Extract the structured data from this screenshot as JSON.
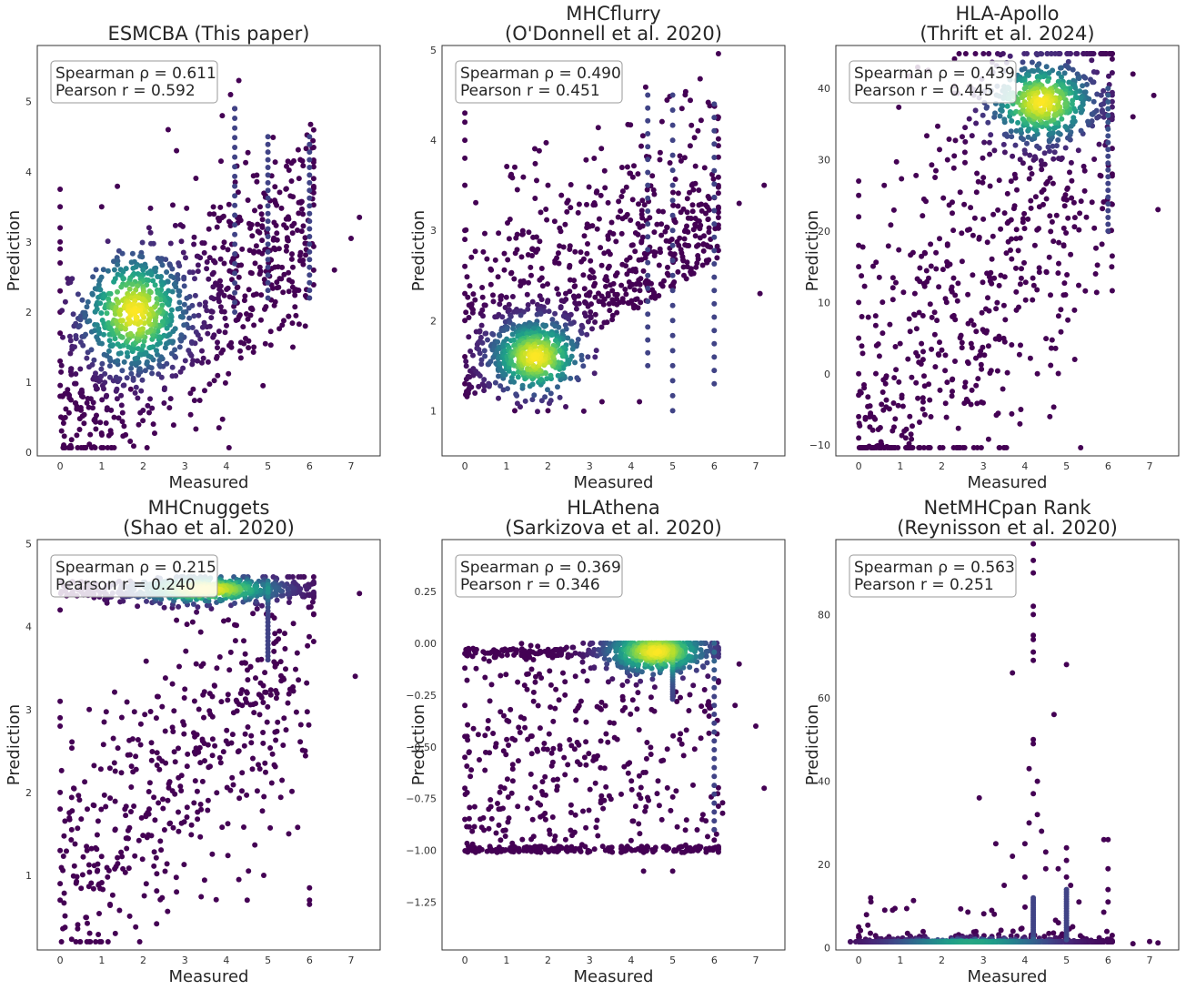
{
  "chart_data": [
    {
      "type": "scatter",
      "title_lines": [
        "ESMCBA (This paper)"
      ],
      "xlabel": "Measured",
      "ylabel": "Prediction",
      "xlim": [
        -0.55,
        7.7
      ],
      "ylim": [
        -0.05,
        5.8
      ],
      "xticks": [
        0,
        1,
        2,
        3,
        4,
        5,
        6,
        7
      ],
      "yticks": [
        0,
        1,
        2,
        3,
        4,
        5
      ],
      "ytick_labels": [
        "0",
        "1",
        "2",
        "3",
        "4",
        "5"
      ],
      "stats": {
        "spearman": "Spearman ρ = 0.611",
        "pearson": "Pearson r = 0.592"
      },
      "legend_position": "top-left",
      "density_peak": [
        1.8,
        2.0
      ],
      "density_spread": [
        0.9,
        0.6
      ],
      "n_points": 1100,
      "points": [
        [
          0,
          0.8
        ],
        [
          0,
          1.3
        ],
        [
          0,
          1.7
        ],
        [
          0,
          2.0
        ],
        [
          0,
          2.3
        ],
        [
          0,
          2.7
        ],
        [
          0,
          2.9
        ],
        [
          0,
          3.0
        ],
        [
          0,
          3.2
        ],
        [
          0,
          3.5
        ],
        [
          0,
          3.75
        ],
        [
          1.3,
          0.5
        ],
        [
          0.5,
          0.6
        ],
        [
          3.2,
          0.9
        ],
        [
          1.7,
          0.9
        ],
        [
          4.3,
          5.3
        ],
        [
          4.1,
          5.1
        ],
        [
          3.9,
          4.8
        ],
        [
          4.2,
          4.9
        ],
        [
          5.6,
          1.5
        ],
        [
          5.9,
          1.8
        ],
        [
          7.2,
          3.35
        ],
        [
          7.0,
          3.05
        ],
        [
          6.6,
          2.6
        ],
        [
          6.1,
          3.7
        ],
        [
          1.0,
          3.5
        ],
        [
          2.6,
          4.6
        ],
        [
          2.8,
          4.3
        ]
      ],
      "vertical_lines": [
        [
          4.2,
          2.0,
          4.9
        ],
        [
          5.0,
          2.2,
          4.5
        ],
        [
          6.0,
          2.2,
          4.5
        ]
      ]
    },
    {
      "type": "scatter",
      "title_lines": [
        "MHCflurry",
        "(O'Donnell et al. 2020)"
      ],
      "xlabel": "Measured",
      "ylabel": "Prediction",
      "xlim": [
        -0.55,
        7.7
      ],
      "ylim": [
        0.5,
        5.05
      ],
      "xticks": [
        0,
        1,
        2,
        3,
        4,
        5,
        6,
        7
      ],
      "yticks": [
        1,
        2,
        3,
        4,
        5
      ],
      "ytick_labels": [
        "1",
        "2",
        "3",
        "4",
        "5"
      ],
      "stats": {
        "spearman": "Spearman ρ = 0.490",
        "pearson": "Pearson r = 0.451"
      },
      "legend_position": "top-left",
      "density_peak": [
        1.7,
        1.6
      ],
      "density_spread": [
        0.8,
        0.3
      ],
      "n_points": 1100,
      "points": [
        [
          0,
          4.3
        ],
        [
          0,
          4.2
        ],
        [
          0,
          4.0
        ],
        [
          0,
          3.8
        ],
        [
          0,
          3.5
        ],
        [
          0,
          3.0
        ],
        [
          0,
          2.9
        ],
        [
          0,
          2.6
        ],
        [
          0,
          2.3
        ],
        [
          0,
          2.0
        ],
        [
          0,
          1.6
        ],
        [
          0,
          1.3
        ],
        [
          1.1,
          3.6
        ],
        [
          1.2,
          3.7
        ],
        [
          2.0,
          3.5
        ],
        [
          7.2,
          3.5
        ],
        [
          6.6,
          3.3
        ],
        [
          7.1,
          2.3
        ],
        [
          4.2,
          1.1
        ],
        [
          3.3,
          1.1
        ],
        [
          2.0,
          1.0
        ],
        [
          1.2,
          1.0
        ]
      ],
      "vertical_lines": [
        [
          5.0,
          1.0,
          4.5
        ],
        [
          6.0,
          1.3,
          4.4
        ],
        [
          4.4,
          1.5,
          4.5
        ]
      ]
    },
    {
      "type": "scatter",
      "title_lines": [
        "HLA-Apollo",
        "(Thrift et al. 2024)"
      ],
      "xlabel": "Measured",
      "ylabel": "Prediction",
      "xlim": [
        -0.55,
        7.7
      ],
      "ylim": [
        -11.5,
        46
      ],
      "xticks": [
        0,
        1,
        2,
        3,
        4,
        5,
        6,
        7
      ],
      "yticks": [
        -10,
        0,
        10,
        20,
        30,
        40
      ],
      "ytick_labels": [
        "−10",
        "0",
        "10",
        "20",
        "30",
        "40"
      ],
      "stats": {
        "spearman": "Spearman ρ = 0.439",
        "pearson": "Pearson r = 0.445"
      },
      "legend_position": "top-left",
      "density_peak": [
        4.4,
        38
      ],
      "density_spread": [
        0.9,
        4
      ],
      "n_points": 1100,
      "points": [
        [
          0,
          27
        ],
        [
          0,
          25
        ],
        [
          0,
          22
        ],
        [
          0,
          18
        ],
        [
          0,
          15
        ],
        [
          0,
          10
        ],
        [
          0,
          5
        ],
        [
          0,
          0
        ],
        [
          0,
          -3
        ],
        [
          0,
          -6
        ],
        [
          0,
          -9
        ],
        [
          6.6,
          42
        ],
        [
          7.1,
          39
        ],
        [
          7.2,
          23
        ],
        [
          6.6,
          36
        ],
        [
          6.1,
          28
        ],
        [
          5.7,
          14
        ],
        [
          4.6,
          -6
        ],
        [
          4.3,
          0
        ],
        [
          3.9,
          -5
        ]
      ],
      "vertical_lines": [
        [
          6.0,
          20,
          40
        ]
      ]
    },
    {
      "type": "scatter",
      "title_lines": [
        "MHCnuggets",
        "(Shao et al. 2020)"
      ],
      "xlabel": "Measured",
      "ylabel": "Prediction",
      "xlim": [
        -0.55,
        7.7
      ],
      "ylim": [
        0.1,
        5.05
      ],
      "xticks": [
        0,
        1,
        2,
        3,
        4,
        5,
        6,
        7
      ],
      "yticks": [
        1,
        2,
        3,
        4,
        5
      ],
      "ytick_labels": [
        "1",
        "2",
        "3",
        "4",
        "5"
      ],
      "stats": {
        "spearman": "Spearman ρ = 0.215",
        "pearson": "Pearson r = 0.240"
      },
      "legend_position": "top-left",
      "density_peak": [
        3.5,
        4.45
      ],
      "density_spread": [
        1.3,
        0.12
      ],
      "n_points": 1100,
      "points": [
        [
          0,
          3.1
        ],
        [
          0,
          2.9
        ],
        [
          0,
          2.8
        ],
        [
          0,
          2.0
        ],
        [
          0,
          1.3
        ],
        [
          0,
          0.7
        ],
        [
          0,
          0.9
        ],
        [
          0,
          1.8
        ],
        [
          0,
          4.2
        ],
        [
          7.1,
          3.4
        ],
        [
          7.2,
          4.4
        ],
        [
          6.0,
          0.7
        ],
        [
          6.0,
          0.65
        ],
        [
          6.0,
          0.85
        ],
        [
          4.5,
          0.7
        ],
        [
          1.2,
          0.65
        ],
        [
          2.8,
          0.8
        ],
        [
          4.3,
          0.95
        ],
        [
          5.5,
          1.5
        ],
        [
          4.9,
          1.0
        ],
        [
          0.7,
          3.0
        ],
        [
          4.5,
          3.2
        ],
        [
          4.6,
          2.6
        ]
      ],
      "vertical_lines": [
        [
          5.0,
          3.6,
          4.55
        ]
      ]
    },
    {
      "type": "scatter",
      "title_lines": [
        "HLAthena",
        "(Sarkizova et al. 2020)"
      ],
      "xlabel": "Measured",
      "ylabel": "Prediction",
      "xlim": [
        -0.55,
        7.7
      ],
      "ylim": [
        -1.48,
        0.5
      ],
      "xticks": [
        0,
        1,
        2,
        3,
        4,
        5,
        6,
        7
      ],
      "yticks": [
        -1.25,
        -1.0,
        -0.75,
        -0.5,
        -0.25,
        0.0,
        0.25
      ],
      "ytick_labels": [
        "−1.25",
        "−1.00",
        "−0.75",
        "−0.50",
        "−0.25",
        "0.00",
        "0.25"
      ],
      "stats": {
        "spearman": "Spearman ρ = 0.369",
        "pearson": "Pearson r = 0.346"
      },
      "legend_position": "top-left",
      "density_peak": [
        4.6,
        -0.04
      ],
      "density_spread": [
        0.9,
        0.08
      ],
      "n_points": 1100,
      "points": [
        [
          0,
          -0.05
        ],
        [
          0,
          -0.12
        ],
        [
          0,
          -0.3
        ],
        [
          0,
          -0.45
        ],
        [
          0,
          -0.55
        ],
        [
          0,
          -0.7
        ],
        [
          0,
          -0.85
        ],
        [
          7.2,
          -0.7
        ],
        [
          7.0,
          -0.4
        ],
        [
          6.6,
          -0.1
        ],
        [
          6.5,
          -0.3
        ],
        [
          6.2,
          -0.77
        ],
        [
          6.2,
          -0.82
        ],
        [
          6.0,
          -0.9
        ],
        [
          6.0,
          -0.95
        ],
        [
          4.3,
          -1.1
        ],
        [
          5.0,
          -1.1
        ]
      ],
      "vertical_lines": [
        [
          5.0,
          -0.27,
          -0.02
        ],
        [
          6.0,
          -0.9,
          0.0
        ]
      ]
    },
    {
      "type": "scatter",
      "title_lines": [
        "NetMHCpan Rank",
        "(Reynisson et al. 2020)"
      ],
      "xlabel": "Measured",
      "ylabel": "Prediction",
      "xlim": [
        -0.55,
        7.7
      ],
      "ylim": [
        -0.5,
        98
      ],
      "xticks": [
        0,
        1,
        2,
        3,
        4,
        5,
        6,
        7
      ],
      "yticks": [
        0,
        20,
        40,
        60,
        80
      ],
      "ytick_labels": [
        "0",
        "20",
        "40",
        "60",
        "80"
      ],
      "stats": {
        "spearman": "Spearman ρ = 0.563",
        "pearson": "Pearson r = 0.251"
      },
      "legend_position": "top-left",
      "density_peak": [
        2.7,
        0.6
      ],
      "density_spread": [
        1.5,
        1.0
      ],
      "n_points": 1100,
      "points": [
        [
          4.2,
          97
        ],
        [
          4.2,
          93
        ],
        [
          4.2,
          90
        ],
        [
          4.2,
          82
        ],
        [
          4.2,
          80
        ],
        [
          4.2,
          75
        ],
        [
          4.2,
          74
        ],
        [
          4.2,
          71
        ],
        [
          4.2,
          69
        ],
        [
          3.7,
          66
        ],
        [
          4.7,
          56
        ],
        [
          5.0,
          68
        ],
        [
          4.2,
          50
        ],
        [
          4.2,
          49
        ],
        [
          4.1,
          43
        ],
        [
          4.3,
          40
        ],
        [
          4.2,
          37
        ],
        [
          4.3,
          32
        ],
        [
          4.1,
          30
        ],
        [
          4.4,
          28
        ],
        [
          4.0,
          25
        ],
        [
          3.7,
          22
        ],
        [
          3.3,
          25
        ],
        [
          2.9,
          36
        ],
        [
          4.5,
          23
        ],
        [
          4.8,
          19
        ],
        [
          5.0,
          24
        ],
        [
          5.0,
          21
        ],
        [
          5.0,
          17
        ],
        [
          5.1,
          15
        ],
        [
          5.3,
          11
        ],
        [
          5.9,
          26
        ],
        [
          6.0,
          26
        ],
        [
          6.0,
          19
        ],
        [
          6.0,
          14
        ],
        [
          6.0,
          11
        ],
        [
          4.5,
          19
        ],
        [
          4.0,
          17
        ],
        [
          3.5,
          15
        ],
        [
          3.2,
          9
        ],
        [
          0,
          5
        ],
        [
          0,
          3
        ],
        [
          0,
          2.5
        ],
        [
          6.6,
          1
        ],
        [
          7.0,
          1.5
        ],
        [
          7.2,
          1.2
        ],
        [
          6.1,
          3
        ]
      ],
      "vertical_lines": [
        [
          5.0,
          2,
          14
        ],
        [
          4.2,
          2,
          12
        ]
      ]
    }
  ]
}
